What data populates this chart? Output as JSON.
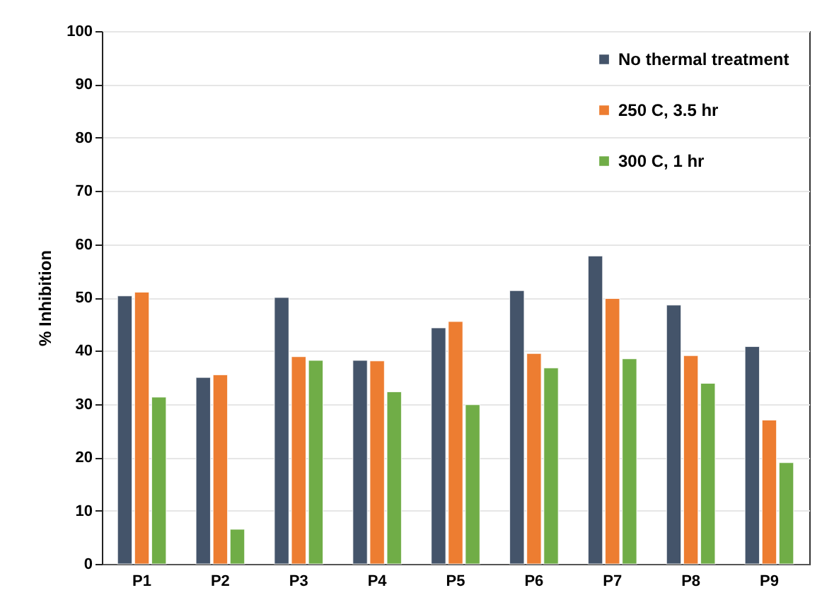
{
  "chart_data": {
    "type": "bar",
    "ylabel": "% Inhibition",
    "categories": [
      "P1",
      "P2",
      "P3",
      "P4",
      "P5",
      "P6",
      "P7",
      "P8",
      "P9"
    ],
    "series": [
      {
        "name": "No thermal treatment",
        "color": "#44546a",
        "values": [
          50.3,
          35,
          50,
          38.2,
          44.3,
          51.3,
          57.8,
          48.6,
          40.8
        ]
      },
      {
        "name": "250 C, 3.5 hr",
        "color": "#ed7d31",
        "values": [
          51,
          35.5,
          38.9,
          38.1,
          45.5,
          39.5,
          49.8,
          39.1,
          27
        ]
      },
      {
        "name": "300 C, 1 hr",
        "color": "#70ad47",
        "values": [
          31.3,
          6.5,
          38.2,
          32.3,
          29.9,
          36.8,
          38.5,
          33.9,
          19
        ]
      }
    ],
    "ylim": [
      0,
      100
    ],
    "yticks": [
      0,
      10,
      20,
      30,
      40,
      50,
      60,
      70,
      80,
      90,
      100
    ],
    "grid": "y",
    "legend": "top right"
  }
}
